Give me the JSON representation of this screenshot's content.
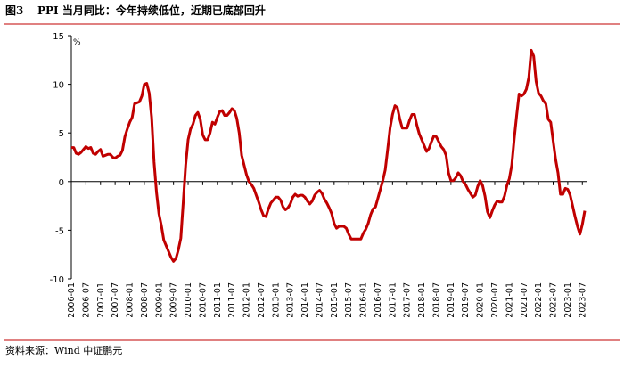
{
  "chart_data": {
    "type": "line",
    "figure_label": "图3",
    "title": "PPI 当月同比：今年持续低位，近期已底部回升",
    "source": "资料来源：Wind 中证鹏元",
    "y_unit": "%",
    "color": "#c00000",
    "ylim": [
      -10,
      15
    ],
    "yticks": [
      -10,
      -5,
      0,
      5,
      10,
      15
    ],
    "categories": [
      "2006-01",
      null,
      null,
      null,
      null,
      null,
      "2006-07",
      null,
      null,
      null,
      null,
      null,
      "2007-01",
      null,
      null,
      null,
      null,
      null,
      "2007-07",
      null,
      null,
      null,
      null,
      null,
      "2008-01",
      null,
      null,
      null,
      null,
      null,
      "2008-07",
      null,
      null,
      null,
      null,
      null,
      "2009-01",
      null,
      null,
      null,
      null,
      null,
      "2009-07",
      null,
      null,
      null,
      null,
      null,
      "2010-01",
      null,
      null,
      null,
      null,
      null,
      "2010-07",
      null,
      null,
      null,
      null,
      null,
      "2011-01",
      null,
      null,
      null,
      null,
      null,
      "2011-07",
      null,
      null,
      null,
      null,
      null,
      "2012-01",
      null,
      null,
      null,
      null,
      null,
      "2012-07",
      null,
      null,
      null,
      null,
      null,
      "2013-01",
      null,
      null,
      null,
      null,
      null,
      "2013-07",
      null,
      null,
      null,
      null,
      null,
      "2014-01",
      null,
      null,
      null,
      null,
      null,
      "2014-07",
      null,
      null,
      null,
      null,
      null,
      "2015-01",
      null,
      null,
      null,
      null,
      null,
      "2015-07",
      null,
      null,
      null,
      null,
      null,
      "2016-01",
      null,
      null,
      null,
      null,
      null,
      "2016-07",
      null,
      null,
      null,
      null,
      null,
      "2017-01",
      null,
      null,
      null,
      null,
      null,
      "2017-07",
      null,
      null,
      null,
      null,
      null,
      "2018-01",
      null,
      null,
      null,
      null,
      null,
      "2018-07",
      null,
      null,
      null,
      null,
      null,
      "2019-01",
      null,
      null,
      null,
      null,
      null,
      "2019-07",
      null,
      null,
      null,
      null,
      null,
      "2020-01",
      null,
      null,
      null,
      null,
      null,
      "2020-07",
      null,
      null,
      null,
      null,
      null,
      "2021-01",
      null,
      null,
      null,
      null,
      null,
      "2021-07",
      null,
      null,
      null,
      null,
      null,
      "2022-01",
      null,
      null,
      null,
      null,
      null,
      "2022-07",
      null,
      null,
      null,
      null,
      null,
      "2023-01",
      null,
      null,
      null,
      null,
      null,
      "2023-07",
      null
    ],
    "values": [
      3.5,
      3.5,
      2.9,
      2.8,
      3.0,
      3.3,
      3.6,
      3.4,
      3.5,
      2.9,
      2.8,
      3.1,
      3.3,
      2.6,
      2.7,
      2.8,
      2.8,
      2.5,
      2.4,
      2.6,
      2.7,
      3.2,
      4.6,
      5.4,
      6.1,
      6.6,
      8.0,
      8.1,
      8.2,
      8.8,
      10.0,
      10.1,
      9.1,
      6.6,
      2.0,
      -1.1,
      -3.3,
      -4.5,
      -6.0,
      -6.6,
      -7.2,
      -7.8,
      -8.2,
      -7.9,
      -7.0,
      -5.8,
      -2.1,
      1.7,
      4.3,
      5.4,
      5.9,
      6.8,
      7.1,
      6.4,
      4.8,
      4.3,
      4.3,
      5.0,
      6.1,
      5.9,
      6.6,
      7.2,
      7.3,
      6.8,
      6.8,
      7.1,
      7.5,
      7.3,
      6.5,
      5.0,
      2.7,
      1.7,
      0.7,
      0.0,
      -0.3,
      -0.7,
      -1.4,
      -2.1,
      -2.9,
      -3.5,
      -3.6,
      -2.8,
      -2.2,
      -1.9,
      -1.6,
      -1.6,
      -1.9,
      -2.6,
      -2.9,
      -2.7,
      -2.3,
      -1.6,
      -1.3,
      -1.5,
      -1.4,
      -1.4,
      -1.6,
      -2.0,
      -2.3,
      -2.0,
      -1.4,
      -1.1,
      -0.9,
      -1.2,
      -1.8,
      -2.2,
      -2.7,
      -3.3,
      -4.3,
      -4.8,
      -4.6,
      -4.6,
      -4.6,
      -4.8,
      -5.4,
      -5.9,
      -5.9,
      -5.9,
      -5.9,
      -5.9,
      -5.3,
      -4.9,
      -4.3,
      -3.4,
      -2.8,
      -2.6,
      -1.7,
      -0.8,
      0.1,
      1.2,
      3.3,
      5.5,
      6.9,
      7.8,
      7.6,
      6.4,
      5.5,
      5.5,
      5.5,
      6.3,
      6.9,
      6.9,
      5.8,
      4.9,
      4.3,
      3.7,
      3.1,
      3.4,
      4.1,
      4.7,
      4.6,
      4.1,
      3.6,
      3.3,
      2.7,
      0.9,
      0.1,
      0.1,
      0.4,
      0.9,
      0.6,
      0.0,
      -0.3,
      -0.8,
      -1.2,
      -1.6,
      -1.4,
      -0.5,
      0.1,
      -0.4,
      -1.5,
      -3.1,
      -3.7,
      -3.0,
      -2.4,
      -2.0,
      -2.1,
      -2.1,
      -1.5,
      -0.4,
      0.3,
      1.7,
      4.4,
      6.8,
      9.0,
      8.8,
      9.0,
      9.5,
      10.7,
      13.5,
      12.9,
      10.3,
      9.1,
      8.8,
      8.3,
      8.0,
      6.4,
      6.1,
      4.2,
      2.3,
      0.9,
      -1.3,
      -1.3,
      -0.7,
      -0.8,
      -1.4,
      -2.5,
      -3.6,
      -4.6,
      -5.4,
      -4.4,
      -3.0
    ]
  }
}
